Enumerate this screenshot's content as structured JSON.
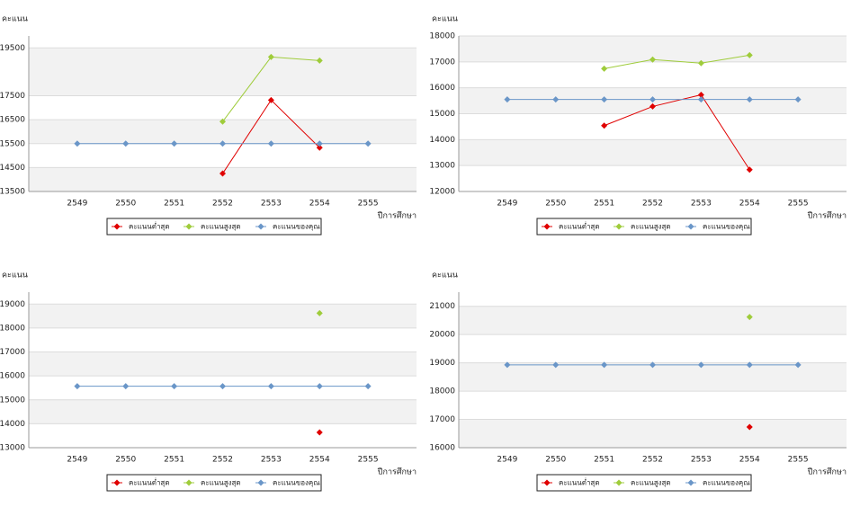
{
  "chart_data": [
    {
      "type": "line",
      "y_label": "คะแนน",
      "x_label": "ปีการศึกษา",
      "categories": [
        "2549",
        "2550",
        "2551",
        "2552",
        "2553",
        "2554",
        "2555"
      ],
      "ylim": [
        13500,
        20000
      ],
      "yticks": [
        13500,
        14500,
        15500,
        16500,
        17500,
        19500
      ],
      "series": [
        {
          "name": "คะแนนต่ำสุด",
          "color": "#e00000",
          "values": [
            null,
            null,
            null,
            14250,
            17320,
            15330,
            null
          ]
        },
        {
          "name": "คะแนนสูงสุด",
          "color": "#9fcc3b",
          "values": [
            null,
            null,
            null,
            16420,
            19120,
            18970,
            null
          ]
        },
        {
          "name": "คะแนนของคุณ",
          "color": "#6a96c8",
          "values": [
            15500,
            15500,
            15500,
            15500,
            15500,
            15500,
            15500
          ]
        }
      ]
    },
    {
      "type": "line",
      "y_label": "คะแนน",
      "x_label": "ปีการศึกษา",
      "categories": [
        "2549",
        "2550",
        "2551",
        "2552",
        "2553",
        "2554",
        "2555"
      ],
      "ylim": [
        12000,
        18000
      ],
      "yticks": [
        12000,
        13000,
        14000,
        15000,
        16000,
        17000,
        18000
      ],
      "series": [
        {
          "name": "คะแนนต่ำสุด",
          "color": "#e00000",
          "values": [
            null,
            null,
            14540,
            15280,
            15730,
            12840,
            null
          ]
        },
        {
          "name": "คะแนนสูงสุด",
          "color": "#9fcc3b",
          "values": [
            null,
            null,
            16740,
            17090,
            16950,
            17260,
            null
          ]
        },
        {
          "name": "คะแนนของคุณ",
          "color": "#6a96c8",
          "values": [
            15550,
            15550,
            15550,
            15550,
            15550,
            15550,
            15550
          ]
        }
      ]
    },
    {
      "type": "line",
      "y_label": "คะแนน",
      "x_label": "ปีการศึกษา",
      "categories": [
        "2549",
        "2550",
        "2551",
        "2552",
        "2553",
        "2554",
        "2555"
      ],
      "ylim": [
        13000,
        19500
      ],
      "yticks": [
        13000,
        14000,
        15000,
        16000,
        17000,
        18000,
        19000
      ],
      "series": [
        {
          "name": "คะแนนต่ำสุด",
          "color": "#e00000",
          "values": [
            null,
            null,
            null,
            null,
            null,
            13640,
            null
          ]
        },
        {
          "name": "คะแนนสูงสุด",
          "color": "#9fcc3b",
          "values": [
            null,
            null,
            null,
            null,
            null,
            18620,
            null
          ]
        },
        {
          "name": "คะแนนของคุณ",
          "color": "#6a96c8",
          "values": [
            15570,
            15570,
            15570,
            15570,
            15570,
            15570,
            15570
          ]
        }
      ]
    },
    {
      "type": "line",
      "y_label": "คะแนน",
      "x_label": "ปีการศึกษา",
      "categories": [
        "2549",
        "2550",
        "2551",
        "2552",
        "2553",
        "2554",
        "2555"
      ],
      "ylim": [
        16000,
        21500
      ],
      "yticks": [
        16000,
        17000,
        18000,
        19000,
        20000,
        21000
      ],
      "series": [
        {
          "name": "คะแนนต่ำสุด",
          "color": "#e00000",
          "values": [
            null,
            null,
            null,
            null,
            null,
            16730,
            null
          ]
        },
        {
          "name": "คะแนนสูงสุด",
          "color": "#9fcc3b",
          "values": [
            null,
            null,
            null,
            null,
            null,
            20620,
            null
          ]
        },
        {
          "name": "คะแนนของคุณ",
          "color": "#6a96c8",
          "values": [
            18930,
            18930,
            18930,
            18930,
            18930,
            18930,
            18930
          ]
        }
      ]
    }
  ]
}
